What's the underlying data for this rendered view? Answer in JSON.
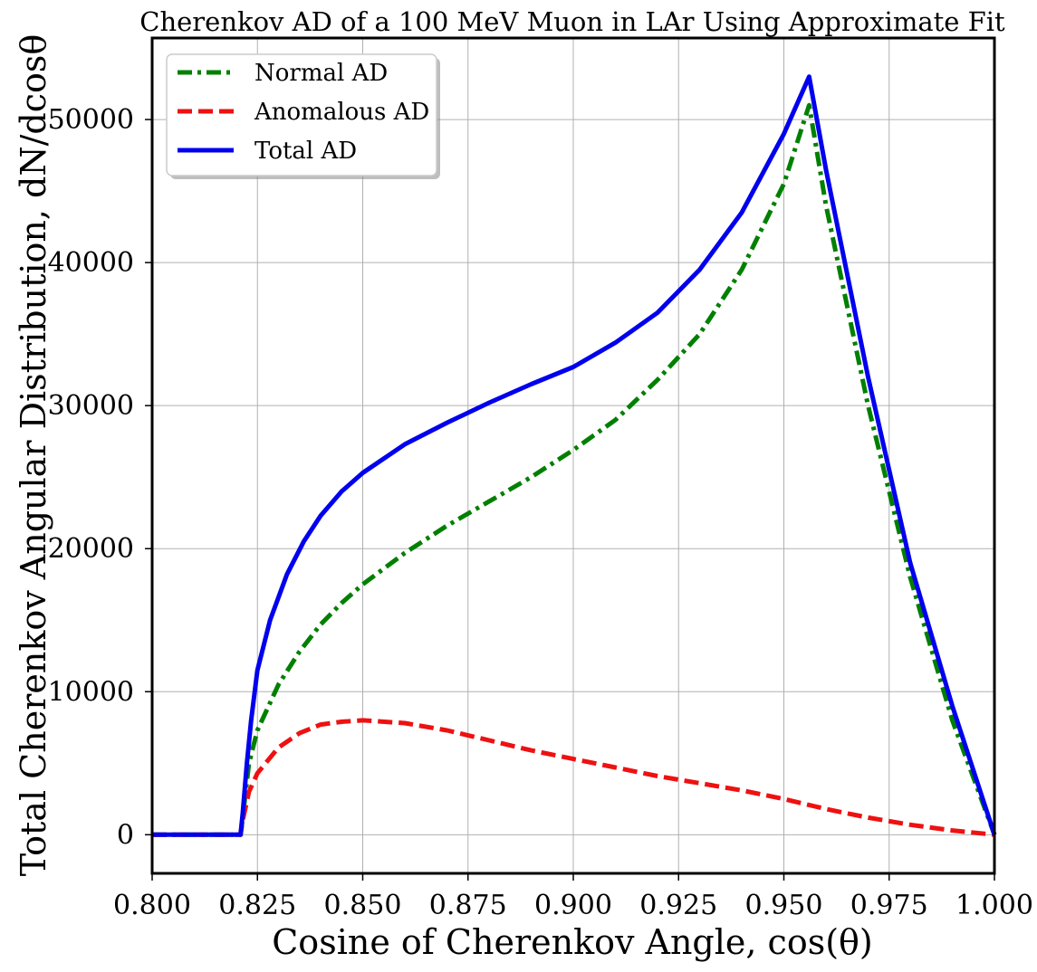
{
  "chart_data": {
    "type": "line",
    "title": "Cherenkov AD of a 100 MeV Muon in LAr Using Approximate Fit",
    "xlabel": "Cosine of Cherenkov Angle, cos(θ)",
    "ylabel": "Total Cherenkov Angular Distribution, dN/dcosθ",
    "xlim": [
      0.8,
      1.0
    ],
    "ylim": [
      -2700,
      55700
    ],
    "xticks": [
      0.8,
      0.825,
      0.85,
      0.875,
      0.9,
      0.925,
      0.95,
      0.975,
      1.0
    ],
    "xtick_labels": [
      "0.800",
      "0.825",
      "0.850",
      "0.875",
      "0.900",
      "0.925",
      "0.950",
      "0.975",
      "1.000"
    ],
    "yticks": [
      0,
      10000,
      20000,
      30000,
      40000,
      50000
    ],
    "ytick_labels": [
      "0",
      "10000",
      "20000",
      "30000",
      "40000",
      "50000"
    ],
    "grid": true,
    "legend_position": "top-left",
    "series": [
      {
        "name": "Normal AD",
        "color": "#008000",
        "style": "dashdot",
        "x": [
          0.8,
          0.821,
          0.8215,
          0.823,
          0.825,
          0.83,
          0.835,
          0.84,
          0.845,
          0.85,
          0.86,
          0.87,
          0.88,
          0.89,
          0.9,
          0.91,
          0.92,
          0.93,
          0.94,
          0.95,
          0.956,
          0.96,
          0.97,
          0.98,
          0.99,
          1.0
        ],
        "y": [
          0,
          0,
          1200,
          5000,
          7300,
          10500,
          12800,
          14700,
          16200,
          17500,
          19700,
          21600,
          23300,
          25000,
          26900,
          29000,
          31800,
          35000,
          39500,
          45500,
          51000,
          44000,
          30000,
          18000,
          8000,
          0
        ]
      },
      {
        "name": "Anomalous AD",
        "color": "#ee1111",
        "style": "dashed",
        "x": [
          0.8,
          0.821,
          0.8215,
          0.823,
          0.825,
          0.83,
          0.835,
          0.84,
          0.845,
          0.85,
          0.86,
          0.87,
          0.88,
          0.89,
          0.9,
          0.91,
          0.92,
          0.93,
          0.94,
          0.95,
          0.96,
          0.97,
          0.98,
          0.99,
          1.0
        ],
        "y": [
          0,
          0,
          1000,
          3000,
          4300,
          6100,
          7100,
          7700,
          7900,
          8000,
          7800,
          7300,
          6600,
          5900,
          5300,
          4700,
          4100,
          3600,
          3100,
          2500,
          1800,
          1200,
          700,
          300,
          0
        ]
      },
      {
        "name": "Total AD",
        "color": "#0000ee",
        "style": "solid",
        "x": [
          0.8,
          0.821,
          0.8215,
          0.8225,
          0.8235,
          0.825,
          0.828,
          0.832,
          0.836,
          0.84,
          0.845,
          0.85,
          0.86,
          0.87,
          0.88,
          0.89,
          0.9,
          0.91,
          0.92,
          0.93,
          0.94,
          0.95,
          0.956,
          0.96,
          0.97,
          0.98,
          0.99,
          1.0
        ],
        "y": [
          0,
          0,
          1500,
          5000,
          8000,
          11500,
          15000,
          18200,
          20500,
          22300,
          24000,
          25300,
          27300,
          28800,
          30200,
          31500,
          32700,
          34400,
          36500,
          39500,
          43500,
          49000,
          53000,
          46500,
          32000,
          19000,
          9000,
          0
        ]
      }
    ]
  }
}
